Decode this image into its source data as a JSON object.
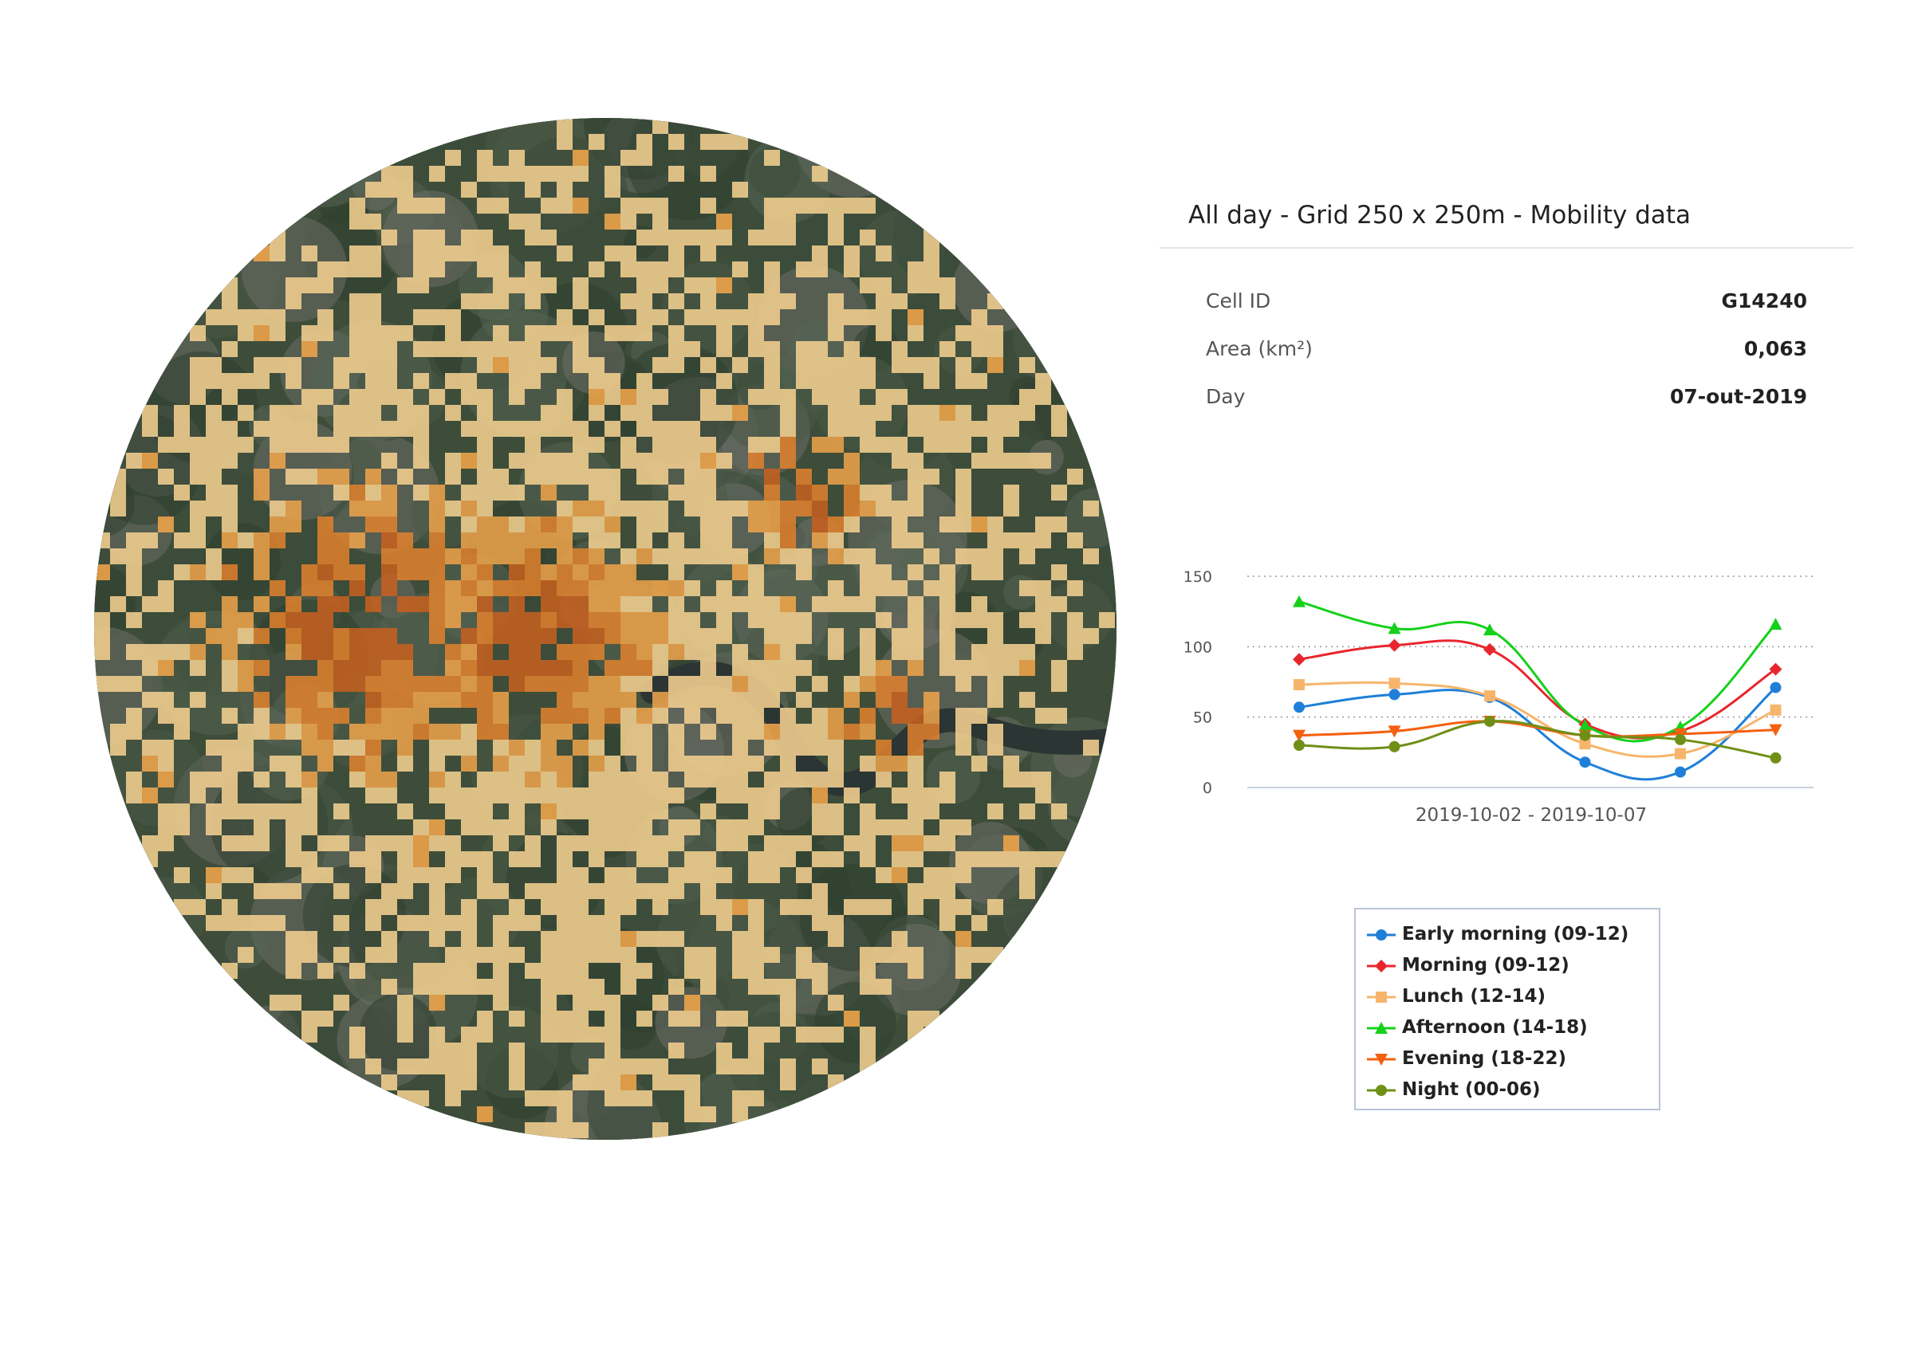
{
  "map": {
    "name": "mobility-grid-map",
    "colors": {
      "ground": [
        "#2f3f2f",
        "#3d4d3a",
        "#4a5a46",
        "#566452",
        "#6b6e66"
      ],
      "river": "#2b3533",
      "low": "#f2cf8f",
      "mid": "#f0a54a",
      "high": "#e8842c",
      "peak": "#c9601f"
    }
  },
  "panel": {
    "title": "All day - Grid 250 x 250m - Mobility data",
    "rows": [
      {
        "label": "Cell ID",
        "value": "G14240"
      },
      {
        "label": "Area (km²)",
        "value": "0,063"
      },
      {
        "label": "Day",
        "value": "07-out-2019"
      }
    ]
  },
  "chart_data": {
    "type": "line",
    "title": "",
    "xlabel": "2019-10-02 - 2019-10-07",
    "ylabel": "",
    "ylim": [
      0,
      150
    ],
    "yticks": [
      0,
      50,
      100,
      150
    ],
    "grid": true,
    "legend_placement": "bottom",
    "points_count": 6,
    "series": [
      {
        "name": "Early morning (09-12)",
        "color": "#1f7fd8",
        "marker": "circle",
        "values": [
          57,
          66,
          64,
          18,
          11,
          71
        ]
      },
      {
        "name": "Morning (09-12)",
        "color": "#e8262e",
        "marker": "diamond",
        "values": [
          91,
          101,
          98,
          45,
          40,
          84
        ]
      },
      {
        "name": "Lunch (12-14)",
        "color": "#f7b56b",
        "marker": "square",
        "values": [
          73,
          74,
          65,
          31,
          24,
          55
        ]
      },
      {
        "name": "Afternoon (14-18)",
        "color": "#15d11a",
        "marker": "triangle-up",
        "values": [
          132,
          113,
          112,
          44,
          43,
          116
        ]
      },
      {
        "name": "Evening (18-22)",
        "color": "#f5600f",
        "marker": "triangle-down",
        "values": [
          37,
          40,
          47,
          37,
          38,
          41
        ]
      },
      {
        "name": "Night (00-06)",
        "color": "#6f8f17",
        "marker": "circle",
        "values": [
          30,
          29,
          47,
          37,
          34,
          21
        ]
      }
    ]
  }
}
